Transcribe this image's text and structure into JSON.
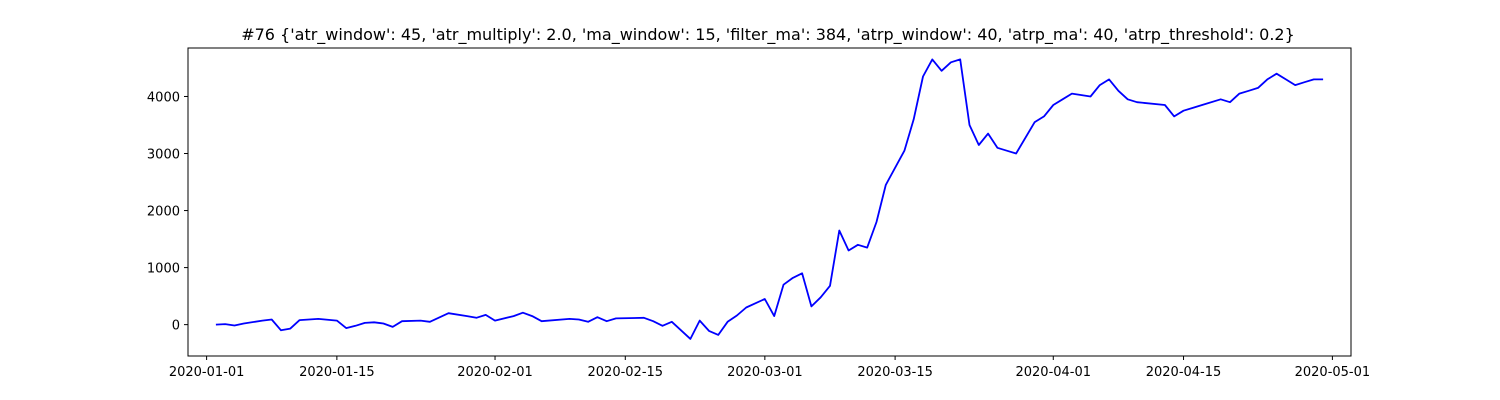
{
  "chart_data": {
    "type": "line",
    "title": "#76 {'atr_window': 45, 'atr_multiply': 2.0, 'ma_window': 15, 'filter_ma': 384, 'atrp_window': 40, 'atrp_ma': 40, 'atrp_threshold': 0.2}",
    "xlabel": "",
    "ylabel": "",
    "x_type": "date",
    "xlim": [
      "2019-12-30",
      "2020-05-03"
    ],
    "ylim": [
      -550,
      4850
    ],
    "x_ticks": [
      "2020-01-01",
      "2020-01-15",
      "2020-02-01",
      "2020-02-15",
      "2020-03-01",
      "2020-03-15",
      "2020-04-01",
      "2020-04-15",
      "2020-05-01"
    ],
    "y_ticks": [
      0,
      1000,
      2000,
      3000,
      4000
    ],
    "grid": false,
    "line_color": "#0000ff",
    "series": [
      {
        "x": [
          "2020-01-02",
          "2020-01-03",
          "2020-01-04",
          "2020-01-05",
          "2020-01-07",
          "2020-01-08",
          "2020-01-09",
          "2020-01-10",
          "2020-01-11",
          "2020-01-13",
          "2020-01-15",
          "2020-01-16",
          "2020-01-17",
          "2020-01-18",
          "2020-01-19",
          "2020-01-20",
          "2020-01-21",
          "2020-01-22",
          "2020-01-24",
          "2020-01-25",
          "2020-01-27",
          "2020-01-29",
          "2020-01-30",
          "2020-01-31",
          "2020-02-01",
          "2020-02-03",
          "2020-02-04",
          "2020-02-05",
          "2020-02-06",
          "2020-02-09",
          "2020-02-10",
          "2020-02-11",
          "2020-02-12",
          "2020-02-13",
          "2020-02-14",
          "2020-02-17",
          "2020-02-18",
          "2020-02-19",
          "2020-02-20",
          "2020-02-22",
          "2020-02-23",
          "2020-02-24",
          "2020-02-25",
          "2020-02-26",
          "2020-02-27",
          "2020-02-28",
          "2020-03-01",
          "2020-03-02",
          "2020-03-03",
          "2020-03-04",
          "2020-03-05",
          "2020-03-06",
          "2020-03-07",
          "2020-03-08",
          "2020-03-09",
          "2020-03-10",
          "2020-03-11",
          "2020-03-12",
          "2020-03-13",
          "2020-03-14",
          "2020-03-16",
          "2020-03-17",
          "2020-03-18",
          "2020-03-19",
          "2020-03-20",
          "2020-03-21",
          "2020-03-22",
          "2020-03-23",
          "2020-03-24",
          "2020-03-25",
          "2020-03-26",
          "2020-03-27",
          "2020-03-28",
          "2020-03-30",
          "2020-03-31",
          "2020-04-01",
          "2020-04-02",
          "2020-04-03",
          "2020-04-05",
          "2020-04-06",
          "2020-04-07",
          "2020-04-08",
          "2020-04-09",
          "2020-04-10",
          "2020-04-13",
          "2020-04-14",
          "2020-04-15",
          "2020-04-16",
          "2020-04-17",
          "2020-04-19",
          "2020-04-20",
          "2020-04-21",
          "2020-04-22",
          "2020-04-23",
          "2020-04-24",
          "2020-04-25",
          "2020-04-26",
          "2020-04-27",
          "2020-04-28",
          "2020-04-29",
          "2020-04-30"
        ],
        "values": [
          0,
          10,
          -15,
          20,
          70,
          90,
          -100,
          -70,
          80,
          100,
          70,
          -60,
          -20,
          30,
          40,
          20,
          -40,
          60,
          70,
          50,
          200,
          150,
          120,
          170,
          70,
          150,
          210,
          150,
          60,
          100,
          90,
          50,
          130,
          60,
          110,
          120,
          60,
          -20,
          50,
          -250,
          70,
          -110,
          -180,
          50,
          160,
          300,
          450,
          150,
          700,
          820,
          900,
          320,
          480,
          680,
          1650,
          1300,
          1400,
          1350,
          1800,
          2450,
          3050,
          3600,
          4350,
          4650,
          4450,
          4600,
          4650,
          3500,
          3150,
          3350,
          3100,
          3050,
          3000,
          3550,
          3650,
          3850,
          3950,
          4050,
          4000,
          4200,
          4300,
          4100,
          3950,
          3900,
          3850,
          3650,
          3750,
          3800,
          3850,
          3950,
          3900,
          4050,
          4100,
          4150,
          4300,
          4400,
          4300,
          4200,
          4250,
          4300,
          4300
        ]
      }
    ]
  }
}
